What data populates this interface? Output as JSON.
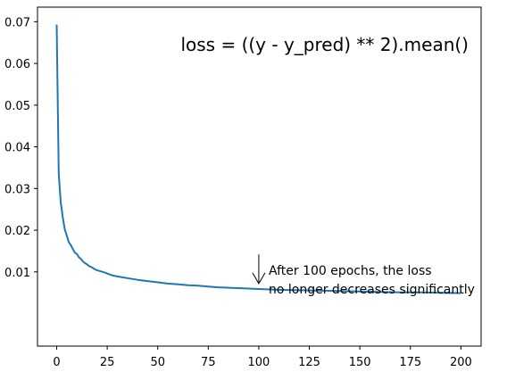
{
  "chart_data": {
    "type": "line",
    "title": "",
    "xlabel": "",
    "ylabel": "",
    "xlim": [
      -9.5,
      210
    ],
    "ylim": [
      -0.0078,
      0.0735
    ],
    "x_ticks": [
      0,
      25,
      50,
      75,
      100,
      125,
      150,
      175,
      200
    ],
    "x_tick_labels": [
      "0",
      "25",
      "50",
      "75",
      "100",
      "125",
      "150",
      "175",
      "200"
    ],
    "y_ticks": [
      0.01,
      0.02,
      0.03,
      0.04,
      0.05,
      0.06,
      0.07
    ],
    "y_tick_labels": [
      "0.01",
      "0.02",
      "0.03",
      "0.04",
      "0.05",
      "0.06",
      "0.07"
    ],
    "grid": false,
    "legend": "none",
    "series": [
      {
        "color": "#1f77b4",
        "x": [
          0,
          1,
          2,
          3,
          4,
          5,
          6,
          7,
          8,
          9,
          10,
          11,
          12,
          13,
          14,
          15,
          16,
          17,
          18,
          19,
          20,
          22,
          24,
          26,
          28,
          30,
          35,
          40,
          45,
          50,
          55,
          60,
          65,
          70,
          75,
          80,
          85,
          90,
          95,
          100,
          110,
          120,
          130,
          140,
          150,
          160,
          170,
          180,
          190,
          200
        ],
        "y": [
          0.0693,
          0.0336,
          0.0268,
          0.0231,
          0.0202,
          0.0187,
          0.0171,
          0.0164,
          0.0155,
          0.0146,
          0.0143,
          0.0135,
          0.0131,
          0.0125,
          0.0121,
          0.0118,
          0.0114,
          0.0112,
          0.0109,
          0.0106,
          0.0104,
          0.0101,
          0.0098,
          0.0094,
          0.0091,
          0.0089,
          0.0085,
          0.0081,
          0.0078,
          0.0075,
          0.0072,
          0.007,
          0.0068,
          0.0067,
          0.0065,
          0.0063,
          0.0062,
          0.0061,
          0.006,
          0.0059,
          0.0057,
          0.0056,
          0.0055,
          0.0054,
          0.0053,
          0.0052,
          0.0051,
          0.0051,
          0.005,
          0.0049
        ]
      }
    ],
    "annotations": [
      {
        "text_lines": [
          "After 100 epochs, the loss",
          "no longer decreases significantly"
        ],
        "arrow_to_x": 100,
        "arrow_to_y": 0.0072,
        "arrow_from_x": 100,
        "arrow_from_y": 0.0142
      }
    ],
    "formula": "loss = ((y - y_pred) ** 2).mean()"
  }
}
